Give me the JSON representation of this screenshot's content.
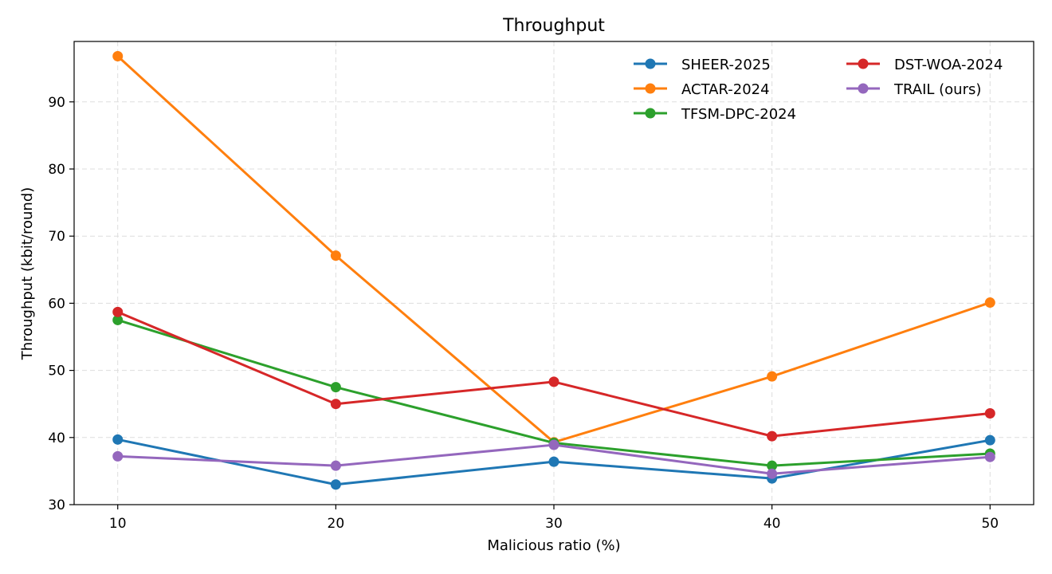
{
  "chart_data": {
    "type": "line",
    "title": "Throughput",
    "xlabel": "Malicious ratio (%)",
    "ylabel": "Throughput (kbit/round)",
    "x": [
      10,
      20,
      30,
      40,
      50
    ],
    "xlim": [
      8,
      52
    ],
    "ylim": [
      30,
      99
    ],
    "yticks": [
      30,
      40,
      50,
      60,
      70,
      80,
      90
    ],
    "grid": true,
    "legend_position": "top-right",
    "series": [
      {
        "name": "SHEER-2025",
        "color": "#1f77b4",
        "values": [
          39.7,
          33.0,
          36.4,
          33.9,
          39.6
        ]
      },
      {
        "name": "ACTAR-2024",
        "color": "#ff7f0e",
        "values": [
          96.8,
          67.1,
          39.3,
          49.1,
          60.1
        ]
      },
      {
        "name": "TFSM-DPC-2024",
        "color": "#2ca02c",
        "values": [
          57.5,
          47.5,
          39.2,
          35.8,
          37.6
        ]
      },
      {
        "name": "DST-WOA-2024",
        "color": "#d62728",
        "values": [
          58.7,
          45.0,
          48.3,
          40.2,
          43.6
        ]
      },
      {
        "name": "TRAIL (ours)",
        "color": "#9467bd",
        "values": [
          37.2,
          35.8,
          38.9,
          34.6,
          37.1
        ]
      }
    ]
  }
}
